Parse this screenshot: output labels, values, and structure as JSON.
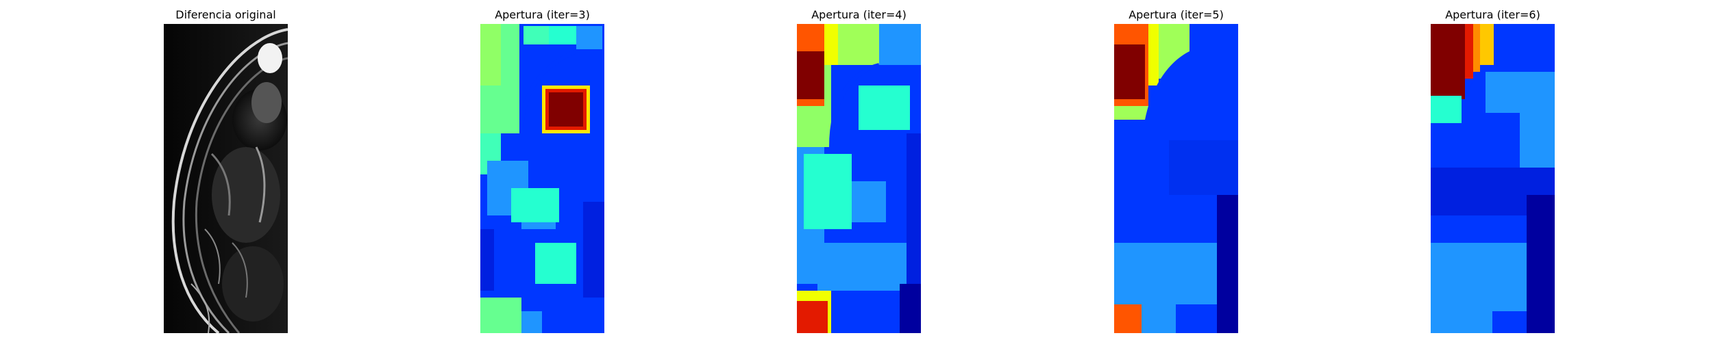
{
  "panels": [
    {
      "title": "Diferencia original",
      "colormap": "gray"
    },
    {
      "title": "Apertura (iter=3)",
      "colormap": "jet"
    },
    {
      "title": "Apertura (iter=4)",
      "colormap": "jet"
    },
    {
      "title": "Apertura (iter=5)",
      "colormap": "jet"
    },
    {
      "title": "Apertura (iter=6)",
      "colormap": "jet"
    }
  ],
  "colors": {
    "dark_red": "#800000",
    "red": "#e31a00",
    "orange": "#ff5500",
    "yellow": "#f0ff00",
    "yellow_green": "#a0ff58",
    "cyan": "#25ffd0",
    "sky": "#1f95ff",
    "blue": "#0037ff",
    "dark_blue": "#00009f"
  }
}
